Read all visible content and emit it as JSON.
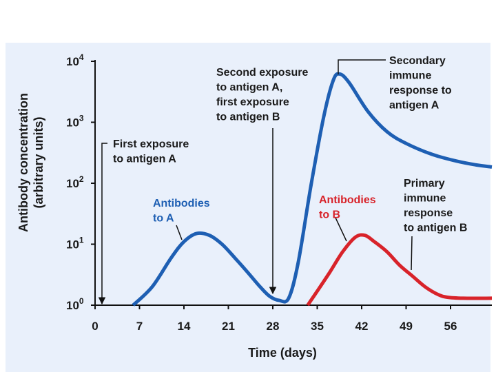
{
  "chart_data": {
    "type": "line",
    "title": "",
    "xlabel": "Time (days)",
    "ylabel_lines": [
      "Antibody concentration",
      "(arbitrary units)"
    ],
    "y_scale": "log",
    "xlim": [
      0,
      63
    ],
    "ylim": [
      1,
      10000
    ],
    "x_ticks": [
      "0",
      "7",
      "14",
      "21",
      "28",
      "35",
      "42",
      "49",
      "56"
    ],
    "y_ticks": [
      {
        "value": 1,
        "base": "10",
        "exp": "0"
      },
      {
        "value": 10,
        "base": "10",
        "exp": "1"
      },
      {
        "value": 100,
        "base": "10",
        "exp": "2"
      },
      {
        "value": 1000,
        "base": "10",
        "exp": "3"
      },
      {
        "value": 10000,
        "base": "10",
        "exp": "4"
      }
    ],
    "series": [
      {
        "color": "#1e5fb3",
        "points": [
          [
            6,
            1
          ],
          [
            9,
            2
          ],
          [
            12,
            6
          ],
          [
            14,
            11
          ],
          [
            16,
            15
          ],
          [
            18,
            14
          ],
          [
            20,
            10
          ],
          [
            22,
            6
          ],
          [
            24,
            3.5
          ],
          [
            26,
            2
          ],
          [
            27.5,
            1.4
          ],
          [
            29,
            1.2
          ],
          [
            30.5,
            1.3
          ],
          [
            32,
            5
          ],
          [
            34,
            90
          ],
          [
            36,
            1200
          ],
          [
            37.5,
            4800
          ],
          [
            38.5,
            6200
          ],
          [
            40,
            4500
          ],
          [
            43,
            1500
          ],
          [
            46,
            700
          ],
          [
            49,
            450
          ],
          [
            53,
            300
          ],
          [
            57,
            230
          ],
          [
            60,
            200
          ],
          [
            63,
            185
          ]
        ]
      },
      {
        "color": "#d8232a",
        "points": [
          [
            33.5,
            1
          ],
          [
            35,
            1.7
          ],
          [
            37,
            3.5
          ],
          [
            39,
            7.5
          ],
          [
            41,
            13
          ],
          [
            42.5,
            14
          ],
          [
            44,
            11
          ],
          [
            46,
            7.5
          ],
          [
            48,
            4.5
          ],
          [
            50,
            3
          ],
          [
            52,
            2
          ],
          [
            54,
            1.5
          ],
          [
            55.5,
            1.35
          ],
          [
            58,
            1.3
          ],
          [
            63,
            1.3
          ]
        ]
      }
    ],
    "annotations": {
      "first_exposure": [
        "First exposure",
        "to antigen A"
      ],
      "second_exposure": [
        "Second exposure",
        "to antigen A,",
        "first exposure",
        "to antigen B"
      ],
      "antibodies_a": [
        "Antibodies",
        "to A"
      ],
      "antibodies_b": [
        "Antibodies",
        "to B"
      ],
      "secondary_response": [
        "Secondary",
        "immune",
        "response to",
        "antigen A"
      ],
      "primary_response": [
        "Primary",
        "immune",
        "response",
        "to antigen B"
      ]
    }
  }
}
